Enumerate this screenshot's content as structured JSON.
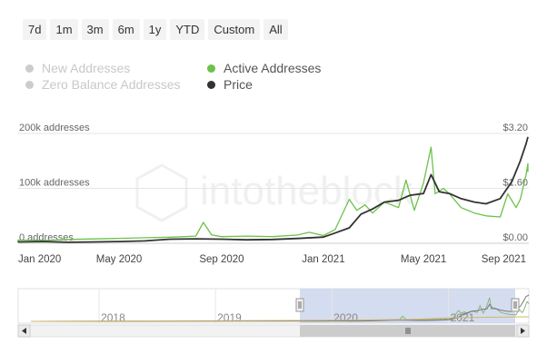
{
  "range_buttons": [
    "7d",
    "1m",
    "3m",
    "6m",
    "1y",
    "YTD",
    "Custom",
    "All"
  ],
  "legend": [
    {
      "label": "New Addresses",
      "active": false,
      "color": "#cccccc"
    },
    {
      "label": "Zero Balance Addresses",
      "active": false,
      "color": "#cccccc"
    },
    {
      "label": "Active Addresses",
      "active": true,
      "color": "#6cc24a"
    },
    {
      "label": "Price",
      "active": true,
      "color": "#333333"
    }
  ],
  "watermark": "intotheblock",
  "chart_data": {
    "type": "line",
    "x_ticks": [
      "Jan 2020",
      "May 2020",
      "Sep 2020",
      "Jan 2021",
      "May 2021",
      "Sep 2021"
    ],
    "y_left_ticks": [
      "0 addresses",
      "100k addresses",
      "200k addresses"
    ],
    "y_right_ticks": [
      "$0.00",
      "$1.60",
      "$3.20"
    ],
    "ylim_left": [
      0,
      200000
    ],
    "ylim_right": [
      0,
      3.2
    ],
    "series": [
      {
        "name": "Active Addresses",
        "axis": "left",
        "color": "#6cc24a",
        "x": [
          "2019-11-01",
          "2019-12-01",
          "2020-01-01",
          "2020-02-01",
          "2020-03-01",
          "2020-04-01",
          "2020-05-01",
          "2020-06-01",
          "2020-07-01",
          "2020-08-01",
          "2020-08-10",
          "2020-08-20",
          "2020-09-01",
          "2020-10-01",
          "2020-11-01",
          "2020-12-01",
          "2020-12-15",
          "2021-01-01",
          "2021-01-15",
          "2021-02-01",
          "2021-02-10",
          "2021-02-20",
          "2021-03-01",
          "2021-03-15",
          "2021-04-01",
          "2021-04-10",
          "2021-04-20",
          "2021-05-01",
          "2021-05-10",
          "2021-05-15",
          "2021-05-25",
          "2021-06-01",
          "2021-06-15",
          "2021-07-01",
          "2021-07-15",
          "2021-08-01",
          "2021-08-10",
          "2021-08-20",
          "2021-08-25",
          "2021-09-01",
          "2021-09-05",
          "2021-09-10"
        ],
        "values": [
          3000,
          4000,
          6000,
          5000,
          7000,
          8000,
          9000,
          10000,
          11000,
          13000,
          38000,
          15000,
          12000,
          13000,
          12000,
          15000,
          20000,
          14000,
          25000,
          80000,
          60000,
          70000,
          55000,
          75000,
          65000,
          115000,
          60000,
          110000,
          175000,
          90000,
          100000,
          90000,
          65000,
          55000,
          50000,
          48000,
          90000,
          65000,
          80000,
          125000,
          145000,
          130000
        ]
      },
      {
        "name": "Price",
        "axis": "right",
        "color": "#333333",
        "x": [
          "2019-11-01",
          "2019-12-01",
          "2020-01-01",
          "2020-02-01",
          "2020-03-01",
          "2020-04-01",
          "2020-05-01",
          "2020-06-01",
          "2020-07-01",
          "2020-08-01",
          "2020-09-01",
          "2020-10-01",
          "2020-11-01",
          "2020-12-01",
          "2021-01-01",
          "2021-01-15",
          "2021-02-01",
          "2021-02-15",
          "2021-03-01",
          "2021-03-15",
          "2021-04-01",
          "2021-04-15",
          "2021-05-01",
          "2021-05-10",
          "2021-05-20",
          "2021-06-01",
          "2021-06-15",
          "2021-07-01",
          "2021-07-15",
          "2021-08-01",
          "2021-08-15",
          "2021-08-25",
          "2021-09-01",
          "2021-09-10"
        ],
        "values": [
          0.03,
          0.03,
          0.04,
          0.05,
          0.03,
          0.04,
          0.05,
          0.07,
          0.12,
          0.13,
          0.12,
          0.1,
          0.11,
          0.14,
          0.18,
          0.3,
          0.45,
          0.85,
          1.0,
          1.2,
          1.25,
          1.4,
          1.45,
          2.0,
          1.5,
          1.45,
          1.3,
          1.2,
          1.15,
          1.3,
          1.8,
          2.4,
          2.9,
          3.1
        ]
      }
    ],
    "navigator": {
      "year_labels": [
        "2018",
        "2019",
        "2020",
        "2021"
      ],
      "handle_icon": "grip-lines-icon",
      "scrollbar_icons": [
        "arrow-left-icon",
        "arrow-right-icon"
      ]
    }
  }
}
